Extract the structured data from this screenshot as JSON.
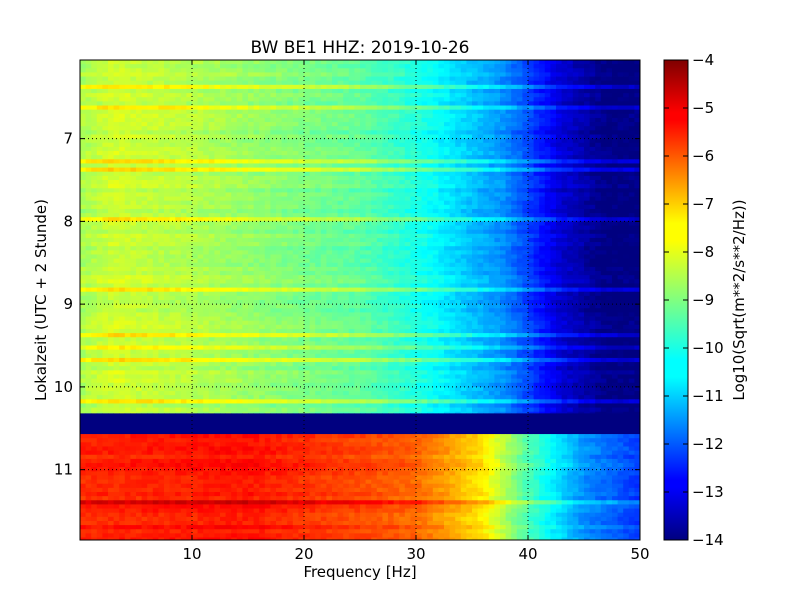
{
  "chart_data": {
    "type": "heatmap",
    "title": "BW BE1 HHZ: 2019-10-26",
    "xlabel": "Frequency [Hz]",
    "ylabel": "Lokalzeit (UTC + 2 Stunde)",
    "xlim": [
      0,
      50
    ],
    "ylim": [
      6.05,
      11.85
    ],
    "x_ticks": [
      10,
      20,
      30,
      40,
      50
    ],
    "y_ticks": [
      7,
      8,
      9,
      10,
      11
    ],
    "grid": true,
    "colormap": "jet",
    "colorbar": {
      "label": "Log10(Sqrt(m**2/s**2/Hz))",
      "range": [
        -14,
        -4
      ],
      "ticks": [
        -4,
        -5,
        -6,
        -7,
        -8,
        -9,
        -10,
        -11,
        -12,
        -13,
        -14
      ]
    },
    "regions": [
      {
        "y": [
          6.05,
          10.32
        ],
        "level_at_freq": [
          [
            0,
            -8.6
          ],
          [
            3,
            -8.2
          ],
          [
            10,
            -8.5
          ],
          [
            25,
            -9.3
          ],
          [
            31,
            -10.1
          ],
          [
            38,
            -11.4
          ],
          [
            43,
            -13.2
          ],
          [
            47,
            -14
          ],
          [
            50,
            -14
          ]
        ]
      },
      {
        "y": [
          10.32,
          10.57
        ],
        "level_at_freq": [
          [
            0,
            -14
          ],
          [
            50,
            -14
          ]
        ]
      },
      {
        "y": [
          10.57,
          11.85
        ],
        "level_at_freq": [
          [
            0,
            -5.6
          ],
          [
            15,
            -5.4
          ],
          [
            30,
            -6.2
          ],
          [
            36,
            -7.5
          ],
          [
            40,
            -9.5
          ],
          [
            45,
            -11.3
          ],
          [
            50,
            -12.2
          ]
        ]
      }
    ]
  }
}
